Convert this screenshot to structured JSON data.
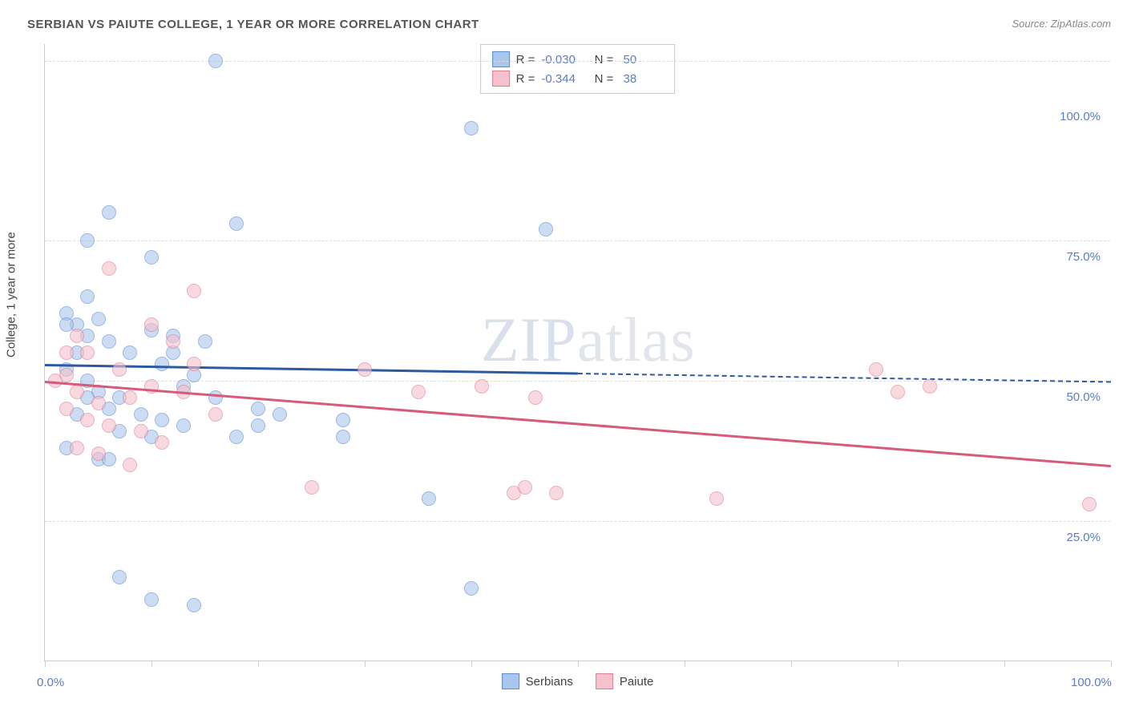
{
  "title": "SERBIAN VS PAIUTE COLLEGE, 1 YEAR OR MORE CORRELATION CHART",
  "source": "Source: ZipAtlas.com",
  "ylabel": "College, 1 year or more",
  "watermark_zip": "ZIP",
  "watermark_atlas": "atlas",
  "chart": {
    "background": "#ffffff",
    "grid_color": "#dddddd",
    "axis_color": "#cccccc",
    "tick_label_color": "#5b7cc4",
    "xlim": [
      0,
      100
    ],
    "ylim": [
      0,
      110
    ],
    "y_gridlines": [
      25,
      50,
      75,
      107
    ],
    "y_tick_labels": [
      {
        "v": 25,
        "label": "25.0%"
      },
      {
        "v": 50,
        "label": "50.0%"
      },
      {
        "v": 75,
        "label": "75.0%"
      },
      {
        "v": 100,
        "label": "100.0%"
      }
    ],
    "x_ticks": [
      0,
      10,
      20,
      30,
      40,
      50,
      60,
      70,
      80,
      90,
      100
    ],
    "x_tick_labels": [
      {
        "v": 0,
        "label": "0.0%"
      },
      {
        "v": 100,
        "label": "100.0%"
      }
    ],
    "marker_radius": 9
  },
  "series": [
    {
      "name": "Serbians",
      "fill": "#a9c6ec",
      "stroke": "#5b8bd0",
      "fill_alpha": 0.6,
      "line_color": "#2c5aa0",
      "R": "-0.030",
      "N": "50",
      "trend": {
        "y_at_x0": 53,
        "y_at_x100": 50,
        "solid_until_x": 50
      },
      "points": [
        [
          16,
          107
        ],
        [
          40,
          95
        ],
        [
          47,
          77
        ],
        [
          6,
          80
        ],
        [
          18,
          78
        ],
        [
          4,
          75
        ],
        [
          10,
          72
        ],
        [
          4,
          65
        ],
        [
          2,
          62
        ],
        [
          3,
          60
        ],
        [
          5,
          61
        ],
        [
          4,
          58
        ],
        [
          6,
          57
        ],
        [
          3,
          55
        ],
        [
          10,
          59
        ],
        [
          12,
          58
        ],
        [
          2,
          52
        ],
        [
          4,
          50
        ],
        [
          5,
          48
        ],
        [
          7,
          47
        ],
        [
          8,
          55
        ],
        [
          11,
          53
        ],
        [
          14,
          51
        ],
        [
          4,
          47
        ],
        [
          6,
          45
        ],
        [
          9,
          44
        ],
        [
          11,
          43
        ],
        [
          13,
          49
        ],
        [
          16,
          47
        ],
        [
          20,
          45
        ],
        [
          22,
          44
        ],
        [
          7,
          41
        ],
        [
          10,
          40
        ],
        [
          13,
          42
        ],
        [
          18,
          40
        ],
        [
          20,
          42
        ],
        [
          2,
          38
        ],
        [
          5,
          36
        ],
        [
          7,
          15
        ],
        [
          10,
          11
        ],
        [
          14,
          10
        ],
        [
          28,
          43
        ],
        [
          28,
          40
        ],
        [
          36,
          29
        ],
        [
          40,
          13
        ],
        [
          6,
          36
        ],
        [
          3,
          44
        ],
        [
          12,
          55
        ],
        [
          15,
          57
        ],
        [
          2,
          60
        ]
      ]
    },
    {
      "name": "Paiute",
      "fill": "#f4c1cd",
      "stroke": "#df7b94",
      "fill_alpha": 0.6,
      "line_color": "#d85a7a",
      "R": "-0.344",
      "N": "38",
      "trend": {
        "y_at_x0": 50,
        "y_at_x100": 35,
        "solid_until_x": 100
      },
      "points": [
        [
          6,
          70
        ],
        [
          14,
          66
        ],
        [
          3,
          58
        ],
        [
          10,
          60
        ],
        [
          12,
          57
        ],
        [
          4,
          55
        ],
        [
          7,
          52
        ],
        [
          2,
          51
        ],
        [
          1,
          50
        ],
        [
          3,
          48
        ],
        [
          5,
          46
        ],
        [
          8,
          47
        ],
        [
          10,
          49
        ],
        [
          13,
          48
        ],
        [
          2,
          45
        ],
        [
          4,
          43
        ],
        [
          6,
          42
        ],
        [
          9,
          41
        ],
        [
          11,
          39
        ],
        [
          3,
          38
        ],
        [
          5,
          37
        ],
        [
          8,
          35
        ],
        [
          25,
          31
        ],
        [
          30,
          52
        ],
        [
          35,
          48
        ],
        [
          41,
          49
        ],
        [
          44,
          30
        ],
        [
          45,
          31
        ],
        [
          46,
          47
        ],
        [
          48,
          30
        ],
        [
          63,
          29
        ],
        [
          78,
          52
        ],
        [
          80,
          48
        ],
        [
          83,
          49
        ],
        [
          98,
          28
        ],
        [
          14,
          53
        ],
        [
          16,
          44
        ],
        [
          2,
          55
        ]
      ]
    }
  ],
  "bottom_legend": [
    {
      "label": "Serbians",
      "fill": "#a9c6ec",
      "stroke": "#5b8bd0"
    },
    {
      "label": "Paiute",
      "fill": "#f4c1cd",
      "stroke": "#df7b94"
    }
  ]
}
